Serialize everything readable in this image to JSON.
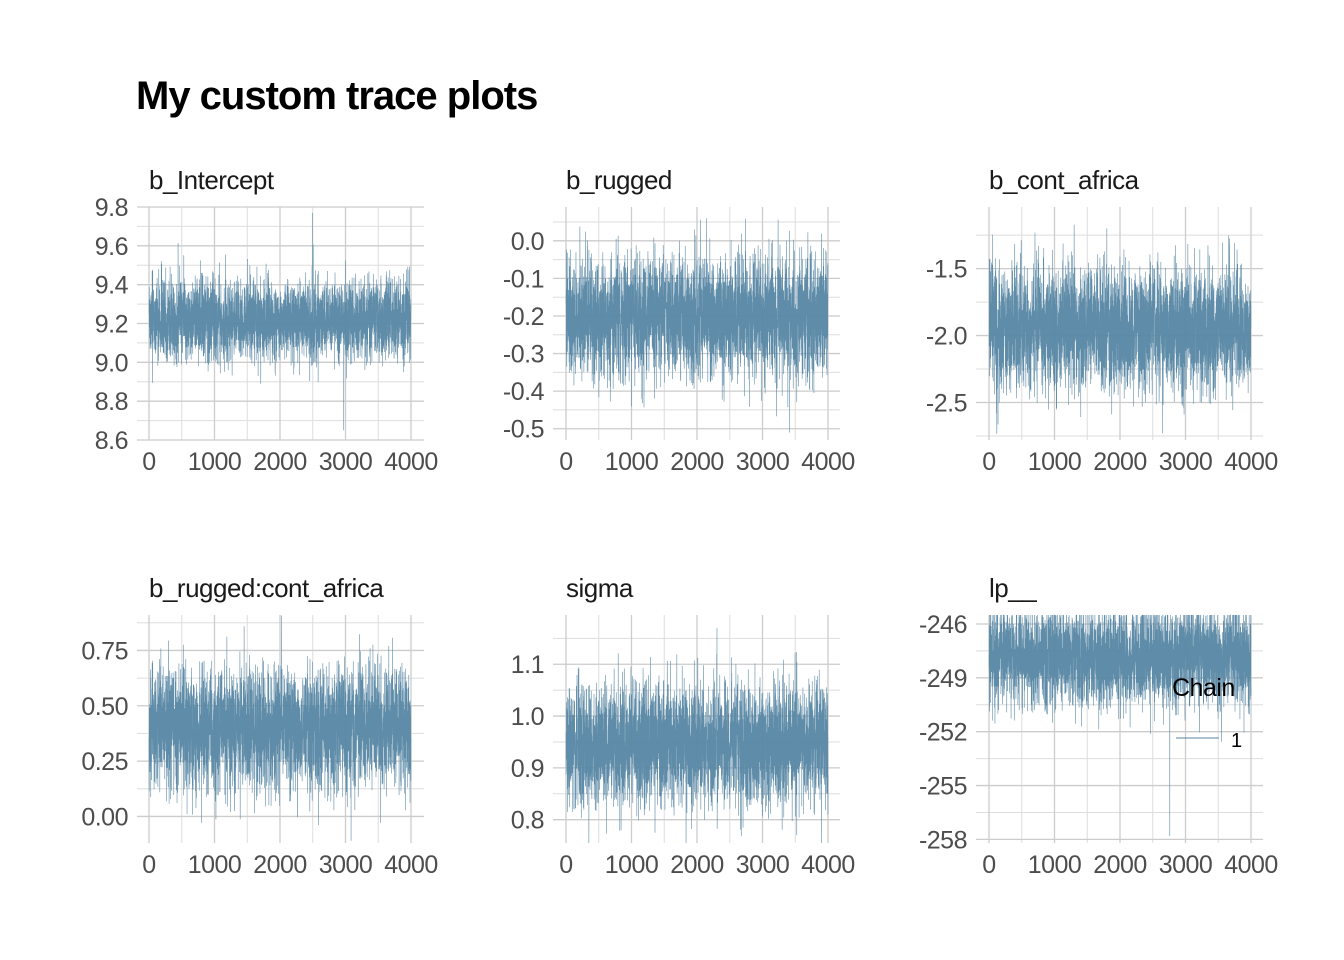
{
  "chart_data": {
    "type": "line",
    "title": "My custom trace plots",
    "line_color": "#5686a3",
    "grid": true,
    "legend": {
      "title": "Chain",
      "entries": [
        "1"
      ]
    },
    "panels": [
      {
        "name": "b_Intercept",
        "xlim": [
          0,
          4000
        ],
        "ylim": [
          8.6,
          9.8
        ],
        "x_ticks": [
          "0",
          "1000",
          "2000",
          "3000",
          "4000"
        ],
        "y_ticks": [
          "8.6",
          "8.8",
          "9.0",
          "9.2",
          "9.4",
          "9.6",
          "9.8"
        ],
        "n_draws": 4000,
        "center": 9.22,
        "spread": 0.1,
        "extremes": {
          "max": 9.77,
          "min": 8.65
        }
      },
      {
        "name": "b_rugged",
        "xlim": [
          0,
          4000
        ],
        "ylim": [
          -0.53,
          0.09
        ],
        "x_ticks": [
          "0",
          "1000",
          "2000",
          "3000",
          "4000"
        ],
        "y_ticks": [
          "-0.5",
          "-0.4",
          "-0.3",
          "-0.2",
          "-0.1",
          "0.0"
        ],
        "n_draws": 4000,
        "center": -0.2,
        "spread": 0.075,
        "extremes": {
          "max": 0.06,
          "min": -0.51
        }
      },
      {
        "name": "b_cont_africa",
        "xlim": [
          0,
          4000
        ],
        "ylim": [
          -2.78,
          -1.04
        ],
        "x_ticks": [
          "0",
          "1000",
          "2000",
          "3000",
          "4000"
        ],
        "y_ticks": [
          "-2.5",
          "-2.0",
          "-1.5"
        ],
        "n_draws": 4000,
        "center": -1.95,
        "spread": 0.22,
        "extremes": {
          "max": -1.2,
          "min": -2.73
        }
      },
      {
        "name": "b_rugged:cont_africa",
        "xlim": [
          0,
          4000
        ],
        "ylim": [
          -0.12,
          0.91
        ],
        "x_ticks": [
          "0",
          "1000",
          "2000",
          "3000",
          "4000"
        ],
        "y_ticks": [
          "0.00",
          "0.25",
          "0.50",
          "0.75"
        ],
        "n_draws": 4000,
        "center": 0.4,
        "spread": 0.13,
        "extremes": {
          "max": 0.86,
          "min": -0.11
        }
      },
      {
        "name": "sigma",
        "xlim": [
          0,
          4000
        ],
        "ylim": [
          0.755,
          1.195
        ],
        "x_ticks": [
          "0",
          "1000",
          "2000",
          "3000",
          "4000"
        ],
        "y_ticks": [
          "0.8",
          "0.9",
          "1.0",
          "1.1"
        ],
        "n_draws": 4000,
        "center": 0.945,
        "spread": 0.055,
        "extremes": {
          "max": 1.17,
          "min": 0.77
        }
      },
      {
        "name": "lp__",
        "xlim": [
          0,
          4000
        ],
        "ylim": [
          -258.2,
          -245.5
        ],
        "x_ticks": [
          "0",
          "1000",
          "2000",
          "3000",
          "4000"
        ],
        "y_ticks": [
          "-258",
          "-255",
          "-252",
          "-249",
          "-246"
        ],
        "n_draws": 4000,
        "center": -247.8,
        "spread": 1.3,
        "extremes": {
          "max": -246.1,
          "min": -257.8
        }
      }
    ]
  }
}
